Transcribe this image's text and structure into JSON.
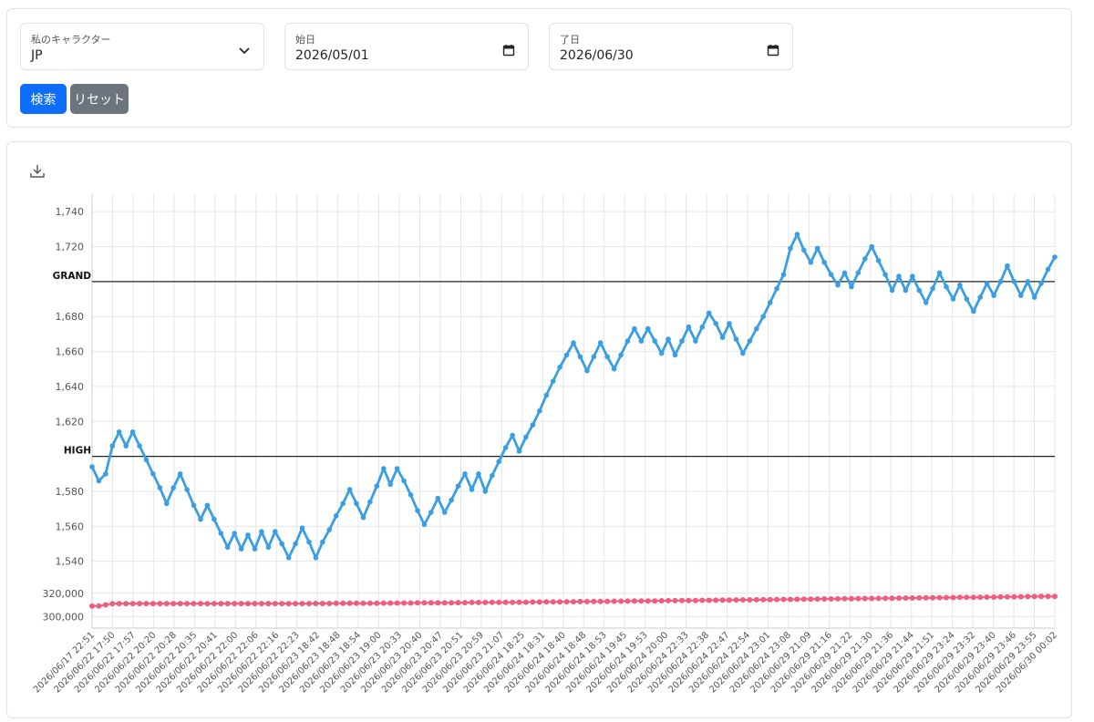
{
  "filters": {
    "character_label": "私のキャラクター",
    "character_value": "JP",
    "start_label": "始日",
    "start_value": "2026/05/01",
    "end_label": "了日",
    "end_value": "2026/06/30"
  },
  "buttons": {
    "search": "検索",
    "reset": "リセット"
  },
  "icons": {
    "download": "download-icon",
    "select": "chevron-down-icon",
    "calendar": "calendar-icon"
  },
  "colors": {
    "primary": "#0d6efd",
    "secondary": "#6c757d",
    "series_main": "#3a9ee4",
    "series_low": "#ef5c7e"
  },
  "chart_data": {
    "type": "line",
    "x_tick_labels": [
      "2026/06/17 22:51",
      "2026/06/22 17:50",
      "2026/06/22 17:57",
      "2026/06/22 20:20",
      "2026/06/22 20:28",
      "2026/06/22 20:35",
      "2026/06/22 20:41",
      "2026/06/22 22:00",
      "2026/06/22 22:06",
      "2026/06/22 22:16",
      "2026/06/22 22:23",
      "2026/06/23 18:42",
      "2026/06/23 18:48",
      "2026/06/23 18:54",
      "2026/06/23 19:00",
      "2026/06/23 20:33",
      "2026/06/23 20:40",
      "2026/06/23 20:47",
      "2026/06/23 20:51",
      "2026/06/23 20:59",
      "2026/06/23 21:07",
      "2026/06/24 18:25",
      "2026/06/24 18:31",
      "2026/06/24 18:40",
      "2026/06/24 18:48",
      "2026/06/24 18:53",
      "2026/06/24 19:45",
      "2026/06/24 19:53",
      "2026/06/24 20:00",
      "2026/06/24 22:33",
      "2026/06/24 22:38",
      "2026/06/24 22:47",
      "2026/06/24 22:54",
      "2026/06/24 23:01",
      "2026/06/24 23:08",
      "2026/06/29 21:09",
      "2026/06/29 21:16",
      "2026/06/29 21:22",
      "2026/06/29 21:30",
      "2026/06/29 21:36",
      "2026/06/29 21:44",
      "2026/06/29 21:51",
      "2026/06/29 23:24",
      "2026/06/29 23:32",
      "2026/06/29 23:40",
      "2026/06/29 23:46",
      "2026/06/29 23:55",
      "2026/06/30 00:02"
    ],
    "upper_axis": {
      "ticks": [
        "1,540",
        "1,560",
        "1,580",
        "1,620",
        "1,640",
        "1,660",
        "1,680",
        "1,720",
        "1,740"
      ],
      "ylim": [
        1532,
        1750
      ]
    },
    "lower_axis": {
      "ticks": [
        "300,000",
        "320,000"
      ],
      "ylim": [
        290000,
        330000
      ]
    },
    "reference_lines": [
      {
        "label": "GRAND",
        "value": 1700
      },
      {
        "label": "HIGH",
        "value": 1600
      }
    ],
    "series": [
      {
        "axis": "upper",
        "values": [
          1594,
          1586,
          1590,
          1606,
          1614,
          1606,
          1614,
          1606,
          1598,
          1590,
          1582,
          1573,
          1582,
          1590,
          1581,
          1572,
          1564,
          1572,
          1564,
          1556,
          1548,
          1556,
          1547,
          1555,
          1547,
          1557,
          1548,
          1557,
          1550,
          1542,
          1550,
          1559,
          1551,
          1542,
          1551,
          1558,
          1566,
          1573,
          1581,
          1573,
          1565,
          1574,
          1583,
          1593,
          1584,
          1593,
          1586,
          1578,
          1569,
          1561,
          1568,
          1576,
          1568,
          1575,
          1583,
          1590,
          1581,
          1590,
          1580,
          1589,
          1597,
          1605,
          1612,
          1603,
          1611,
          1618,
          1626,
          1635,
          1643,
          1651,
          1658,
          1665,
          1657,
          1649,
          1657,
          1665,
          1657,
          1650,
          1658,
          1666,
          1673,
          1666,
          1673,
          1666,
          1659,
          1667,
          1658,
          1666,
          1674,
          1666,
          1674,
          1682,
          1676,
          1668,
          1676,
          1667,
          1659,
          1666,
          1673,
          1680,
          1688,
          1696,
          1704,
          1719,
          1727,
          1718,
          1711,
          1719,
          1711,
          1704,
          1698,
          1705,
          1697,
          1705,
          1713,
          1720,
          1712,
          1704,
          1695,
          1703,
          1695,
          1703,
          1695,
          1688,
          1696,
          1705,
          1697,
          1690,
          1698,
          1690,
          1683,
          1691,
          1699,
          1692,
          1700,
          1709,
          1700,
          1692,
          1700,
          1691,
          1699,
          1707,
          1714
        ]
      },
      {
        "axis": "lower",
        "values": [
          309000,
          309000,
          310000,
          311000,
          311100,
          311100,
          311100,
          311100,
          311100,
          311100,
          311100,
          311100,
          311100,
          311100,
          311100,
          311100,
          311100,
          311100,
          311100,
          311100,
          311100,
          311100,
          311100,
          311100,
          311100,
          311100,
          311100,
          311100,
          311100,
          311100,
          311100,
          311100,
          311100,
          311200,
          311200,
          311200,
          311300,
          311300,
          311300,
          311400,
          311400,
          311400,
          311400,
          311500,
          311500,
          311600,
          311600,
          311600,
          311700,
          311700,
          311700,
          311800,
          311800,
          311800,
          311900,
          311900,
          312000,
          312000,
          312000,
          312100,
          312100,
          312200,
          312200,
          312300,
          312300,
          312400,
          312400,
          312500,
          312600,
          312600,
          312700,
          312700,
          312800,
          312800,
          312900,
          313000,
          313000,
          313100,
          313100,
          313200,
          313300,
          313300,
          313400,
          313400,
          313500,
          313600,
          313600,
          313700,
          313700,
          313800,
          313900,
          313900,
          314000,
          314100,
          314100,
          314200,
          314300,
          314300,
          314400,
          314500,
          314500,
          314600,
          314700,
          314700,
          314800,
          314900,
          314900,
          315000,
          315100,
          315100,
          315200,
          315300,
          315300,
          315400,
          315500,
          315500,
          315600,
          315700,
          315700,
          315800,
          315900,
          315900,
          316000,
          316100,
          316100,
          316200,
          316300,
          316300,
          316400,
          316500,
          316500,
          316600,
          316700,
          316700,
          316800,
          316900,
          316900,
          317000,
          317100,
          317100,
          317200,
          317300,
          317300
        ]
      }
    ]
  }
}
